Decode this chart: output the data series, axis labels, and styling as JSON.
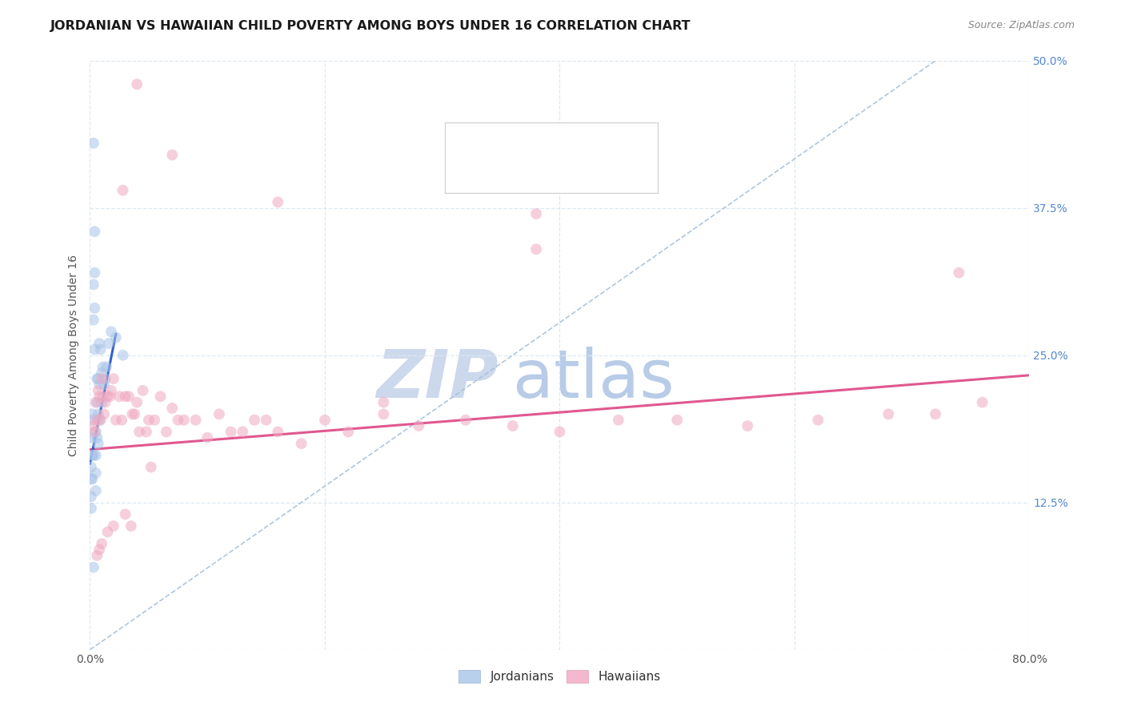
{
  "title": "JORDANIAN VS HAWAIIAN CHILD POVERTY AMONG BOYS UNDER 16 CORRELATION CHART",
  "source": "Source: ZipAtlas.com",
  "ylabel": "Child Poverty Among Boys Under 16",
  "xlim": [
    0.0,
    0.8
  ],
  "ylim": [
    0.0,
    0.5
  ],
  "blue_color": "#a8c4e8",
  "pink_color": "#f0a8c0",
  "blue_line_color": "#3060c8",
  "pink_line_color": "#e05890",
  "dashed_line_color": "#a8c0d8",
  "legend_color1": "#b8d0ec",
  "legend_color2": "#f4b8ce",
  "legend_text_color": "#3060c0",
  "watermark_zip_color": "#ccd8ec",
  "watermark_atlas_color": "#b8cce8",
  "background_color": "#ffffff",
  "grid_color": "#dde8f2",
  "title_fontsize": 11.5,
  "label_fontsize": 10,
  "tick_fontsize": 10,
  "marker_size": 100,
  "marker_alpha": 0.55,
  "blue_line_x": [
    0.0,
    0.022
  ],
  "blue_line_y": [
    0.158,
    0.268
  ],
  "pink_line_x": [
    0.0,
    0.8
  ],
  "pink_line_y": [
    0.17,
    0.233
  ],
  "dash_line_x": [
    0.0,
    0.72
  ],
  "dash_line_y": [
    0.0,
    0.5
  ],
  "jordanians_x": [
    0.001,
    0.001,
    0.001,
    0.001,
    0.002,
    0.002,
    0.002,
    0.002,
    0.003,
    0.003,
    0.003,
    0.003,
    0.003,
    0.004,
    0.004,
    0.004,
    0.004,
    0.005,
    0.005,
    0.005,
    0.005,
    0.006,
    0.006,
    0.006,
    0.007,
    0.007,
    0.007,
    0.008,
    0.008,
    0.008,
    0.009,
    0.01,
    0.01,
    0.011,
    0.012,
    0.013,
    0.014,
    0.016,
    0.018,
    0.022,
    0.028,
    0.003
  ],
  "jordanians_y": [
    0.155,
    0.145,
    0.13,
    0.12,
    0.2,
    0.18,
    0.165,
    0.145,
    0.43,
    0.31,
    0.28,
    0.195,
    0.165,
    0.355,
    0.32,
    0.29,
    0.255,
    0.185,
    0.165,
    0.15,
    0.135,
    0.23,
    0.21,
    0.18,
    0.23,
    0.2,
    0.175,
    0.26,
    0.225,
    0.195,
    0.255,
    0.235,
    0.21,
    0.24,
    0.225,
    0.23,
    0.24,
    0.26,
    0.27,
    0.265,
    0.25,
    0.07
  ],
  "hawaiians_x": [
    0.003,
    0.004,
    0.005,
    0.006,
    0.007,
    0.008,
    0.009,
    0.01,
    0.011,
    0.012,
    0.013,
    0.015,
    0.017,
    0.018,
    0.02,
    0.022,
    0.025,
    0.027,
    0.03,
    0.033,
    0.036,
    0.04,
    0.045,
    0.05,
    0.055,
    0.06,
    0.065,
    0.07,
    0.075,
    0.08,
    0.09,
    0.1,
    0.11,
    0.12,
    0.13,
    0.14,
    0.15,
    0.16,
    0.18,
    0.2,
    0.22,
    0.25,
    0.28,
    0.32,
    0.36,
    0.4,
    0.45,
    0.5,
    0.56,
    0.62,
    0.68,
    0.72,
    0.76,
    0.038,
    0.042,
    0.048,
    0.052,
    0.03,
    0.035,
    0.02,
    0.015,
    0.01,
    0.008,
    0.006,
    0.25,
    0.38
  ],
  "hawaiians_y": [
    0.19,
    0.185,
    0.21,
    0.195,
    0.22,
    0.215,
    0.195,
    0.23,
    0.215,
    0.2,
    0.21,
    0.215,
    0.215,
    0.22,
    0.23,
    0.195,
    0.215,
    0.195,
    0.215,
    0.215,
    0.2,
    0.21,
    0.22,
    0.195,
    0.195,
    0.215,
    0.185,
    0.205,
    0.195,
    0.195,
    0.195,
    0.18,
    0.2,
    0.185,
    0.185,
    0.195,
    0.195,
    0.185,
    0.175,
    0.195,
    0.185,
    0.2,
    0.19,
    0.195,
    0.19,
    0.185,
    0.195,
    0.195,
    0.19,
    0.195,
    0.2,
    0.2,
    0.21,
    0.2,
    0.185,
    0.185,
    0.155,
    0.115,
    0.105,
    0.105,
    0.1,
    0.09,
    0.085,
    0.08,
    0.21,
    0.34
  ],
  "haw_outlier_x": [
    0.04,
    0.07,
    0.028,
    0.16,
    0.38,
    0.74
  ],
  "haw_outlier_y": [
    0.48,
    0.42,
    0.39,
    0.38,
    0.37,
    0.32
  ]
}
